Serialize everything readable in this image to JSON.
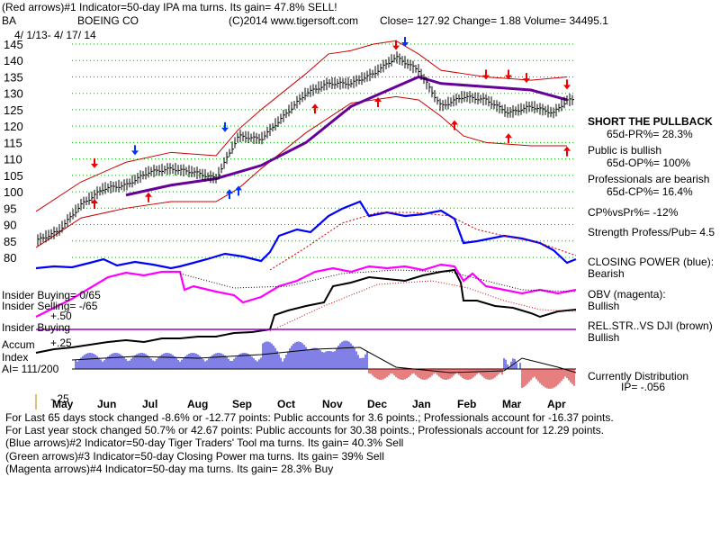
{
  "header": {
    "line1": "(Red arrows)#1 Indicator=50-day IPA ma turns. Its gain= 47.8% SELL!",
    "ticker": "BA",
    "company": "BOEING CO",
    "copyright": "(C)2014 www.tigersoft.com",
    "quote": "Close=  127.92  Change= 1.88 Volume= 34495.1",
    "date_range": "4/ 1/13-  4/ 17/ 14"
  },
  "left_labels": {
    "insider_buying_ratio": "Insider Buying= 0/65",
    "insider_selling_ratio": "Insider Selling= -/65",
    "plus50": "+.50",
    "insider_buying": "Insider Buying",
    "accum": "Accum",
    "plus25": "+.25",
    "index": "Index",
    "ai": "AI= 111/200",
    "minus25": "-.25"
  },
  "right_labels": {
    "short_pullback": "SHORT THE PULLBACK",
    "pr": "65d-PR%= 28.3%",
    "public_bullish": "Public is bullish",
    "op": "65d-OP%= 100%",
    "pros_bearish": "Professionals are bearish",
    "cp": "65d-CP%= 16.4%",
    "cpvspr": "CP%vsPr%= -12%",
    "strength": "Strength Profess/Pub= 4.5",
    "closing_power": "CLOSING POWER (blue):",
    "closing_power_state": "Bearish",
    "obv": "OBV (magenta):",
    "obv_state": "Bullish",
    "relstr": "REL.STR..VS DJI (brown)",
    "relstr_state": "Bullish",
    "distribution": "Currently Distribution",
    "ip": "IP= -.056"
  },
  "footer": {
    "line1": "For Last 65 days stock changed -8.6% or -12.77 points:  Public accounts for  3.6 points.;  Professionals account for -16.37 points.",
    "line2": "For Last year stock changed  50.7% or  42.67 points:  Public accounts for  30.38 points.;  Professionals account for  12.29 points.",
    "line3": "(Blue arrows)#2 Indicator=50-day Tiger Traders' Tool ma turns. Its gain= 40.3% Sell",
    "line4": "(Green arrows)#3 Indicator=50-day Closing Power ma turns. Its gain= 39% Sell",
    "line5": "(Magenta arrows)#4 Indicator=50-day ma turns. Its gain= 28.3% Buy"
  },
  "colors": {
    "price": "#000000",
    "bands": "#cc0000",
    "ma50": "#660099",
    "closing_power": "#0000ff",
    "obv": "#ff00ff",
    "relstr": "#000000",
    "accum_pos": "#0000cc",
    "accum_neg": "#cc0000",
    "grid": "#00aa00"
  },
  "chart_data": {
    "type": "line",
    "title": "BOEING CO",
    "ylim": [
      80,
      145
    ],
    "y_ticks": [
      145,
      140,
      135,
      130,
      125,
      120,
      115,
      110,
      105,
      100,
      95,
      90,
      85,
      80
    ],
    "x_ticks": [
      "May",
      "Jun",
      "Jul",
      "Aug",
      "Sep",
      "Oct",
      "Nov",
      "Dec",
      "Jan",
      "Feb",
      "Mar",
      "Apr"
    ],
    "x_tick_index": [
      0.6,
      1.6,
      2.6,
      3.6,
      4.6,
      5.6,
      6.6,
      7.6,
      8.6,
      9.6,
      10.6,
      11.6
    ],
    "series": [
      {
        "name": "Close",
        "x": [
          0,
          0.5,
          1,
          1.5,
          2,
          2.5,
          3,
          3.5,
          4,
          4.5,
          5,
          5.5,
          6,
          6.5,
          7,
          7.5,
          8,
          8.5,
          9,
          9.5,
          10,
          10.5,
          11,
          11.5,
          11.8
        ],
        "values": [
          85,
          88,
          96,
          101,
          102,
          106,
          107,
          106,
          104,
          117,
          116,
          123,
          130,
          133,
          133,
          136,
          141,
          137,
          126,
          129,
          128,
          124,
          126,
          124,
          127.9
        ]
      },
      {
        "name": "Upper band",
        "x": [
          0,
          1,
          2,
          3,
          4,
          4.5,
          5,
          6,
          6.5,
          7,
          7.5,
          8,
          8.5,
          9,
          9.5,
          10,
          11,
          11.8
        ],
        "values": [
          94,
          103,
          109,
          112,
          111,
          119,
          125,
          136,
          142,
          143,
          145,
          146,
          142,
          137,
          136,
          135,
          134,
          135
        ]
      },
      {
        "name": "Lower band",
        "x": [
          0,
          1,
          2,
          3,
          4,
          4.5,
          5,
          6,
          7,
          8,
          8.5,
          9,
          9.5,
          10,
          11,
          11.8
        ],
        "values": [
          83,
          92,
          95,
          97,
          97,
          101,
          107,
          118,
          127,
          129,
          128,
          123,
          117,
          115,
          114,
          114
        ]
      },
      {
        "name": "50-day MA",
        "x": [
          2,
          3,
          4,
          5,
          6,
          7,
          8,
          8.5,
          9,
          10,
          11,
          11.8
        ],
        "values": [
          99,
          102,
          104,
          108,
          115,
          126,
          132,
          135,
          133,
          132,
          131,
          128
        ]
      }
    ],
    "sell_arrows_red": [
      [
        1.3,
        108
      ],
      [
        8.0,
        144
      ],
      [
        10.0,
        135
      ],
      [
        10.5,
        135
      ],
      [
        10.9,
        134
      ],
      [
        11.8,
        132
      ]
    ],
    "buy_arrows_red": [
      [
        1.3,
        97
      ],
      [
        2.5,
        99
      ],
      [
        6.2,
        126
      ],
      [
        7.6,
        128
      ],
      [
        9.3,
        121
      ],
      [
        10.5,
        117
      ],
      [
        11.8,
        113
      ]
    ],
    "sell_arrows_blue": [
      [
        2.2,
        112
      ],
      [
        4.2,
        119
      ],
      [
        8.2,
        145
      ]
    ],
    "buy_arrows_blue": [
      [
        4.3,
        100
      ],
      [
        4.5,
        101
      ]
    ]
  }
}
